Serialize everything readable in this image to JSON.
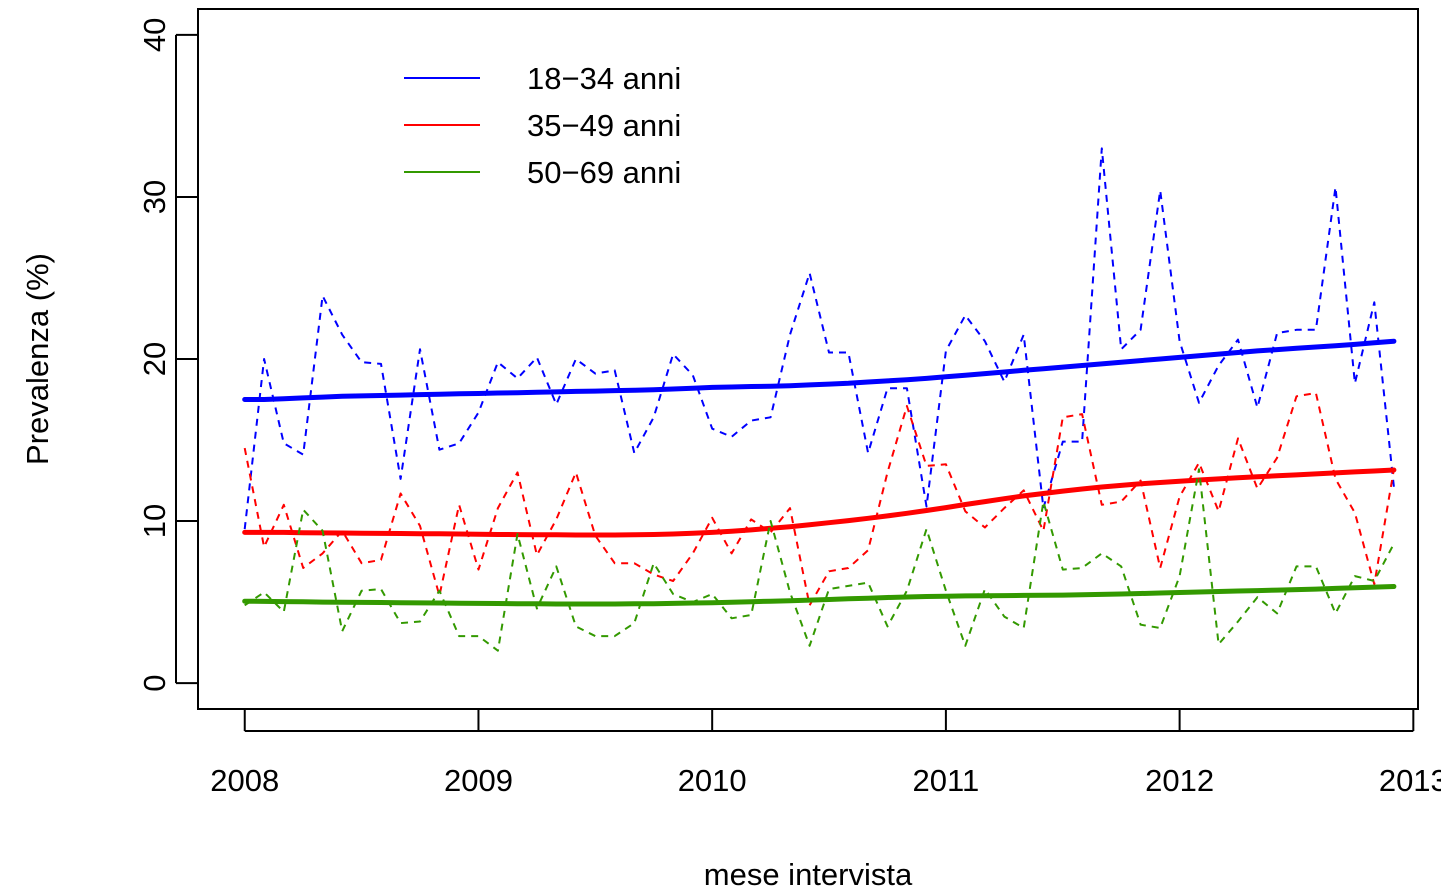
{
  "chart_data": {
    "type": "line",
    "title": "",
    "xlabel": "mese intervista",
    "ylabel": "Prevalenza (%)",
    "xlim": [
      2007.8,
      2013.02
    ],
    "ylim": [
      -1.6,
      41.6
    ],
    "x_ticks": [
      2008,
      2009,
      2010,
      2011,
      2012,
      2013
    ],
    "y_ticks": [
      0,
      10,
      20,
      30,
      40
    ],
    "grid": false,
    "legend_position": "top-left",
    "x": [
      2008.0,
      2008.083,
      2008.167,
      2008.25,
      2008.333,
      2008.417,
      2008.5,
      2008.583,
      2008.667,
      2008.75,
      2008.833,
      2008.917,
      2009.0,
      2009.083,
      2009.167,
      2009.25,
      2009.333,
      2009.417,
      2009.5,
      2009.583,
      2009.667,
      2009.75,
      2009.833,
      2009.917,
      2010.0,
      2010.083,
      2010.167,
      2010.25,
      2010.333,
      2010.417,
      2010.5,
      2010.583,
      2010.667,
      2010.75,
      2010.833,
      2010.917,
      2011.0,
      2011.083,
      2011.167,
      2011.25,
      2011.333,
      2011.417,
      2011.5,
      2011.583,
      2011.667,
      2011.75,
      2011.833,
      2011.917,
      2012.0,
      2012.083,
      2012.167,
      2012.25,
      2012.333,
      2012.417,
      2012.5,
      2012.583,
      2012.667,
      2012.75,
      2012.833,
      2012.917
    ],
    "series": [
      {
        "name": "18−34 anni",
        "color": "#0000ff",
        "monthly": [
          9.5,
          20.0,
          14.8,
          14.1,
          23.9,
          21.5,
          19.8,
          19.7,
          12.6,
          20.6,
          14.4,
          14.8,
          16.7,
          19.8,
          18.8,
          20.1,
          17.2,
          20.0,
          19.1,
          19.3,
          14.2,
          16.4,
          20.3,
          19.0,
          15.7,
          15.2,
          16.2,
          16.4,
          21.5,
          25.3,
          20.4,
          20.4,
          14.2,
          18.2,
          18.2,
          10.9,
          20.5,
          22.7,
          21.1,
          18.6,
          21.5,
          10.8,
          14.9,
          14.9,
          33.0,
          20.6,
          21.8,
          30.4,
          21.1,
          17.3,
          19.6,
          21.2,
          17.0,
          21.6,
          21.8,
          21.8,
          30.6,
          18.5,
          23.5,
          12.1
        ],
        "trend": [
          17.5,
          17.5,
          17.55,
          17.6,
          17.65,
          17.7,
          17.72,
          17.75,
          17.77,
          17.8,
          17.82,
          17.85,
          17.87,
          17.9,
          17.92,
          17.95,
          17.97,
          18.0,
          18.02,
          18.05,
          18.07,
          18.1,
          18.15,
          18.2,
          18.25,
          18.27,
          18.3,
          18.32,
          18.35,
          18.4,
          18.45,
          18.5,
          18.58,
          18.65,
          18.72,
          18.8,
          18.9,
          19.0,
          19.1,
          19.2,
          19.3,
          19.4,
          19.5,
          19.6,
          19.7,
          19.8,
          19.9,
          20.0,
          20.1,
          20.2,
          20.3,
          20.4,
          20.5,
          20.58,
          20.66,
          20.74,
          20.82,
          20.9,
          21.0,
          21.1
        ]
      },
      {
        "name": "35−49 anni",
        "color": "#ff0000",
        "monthly": [
          14.5,
          8.4,
          11.0,
          7.1,
          8.0,
          9.4,
          7.4,
          7.6,
          11.7,
          9.7,
          5.4,
          11.0,
          7.0,
          10.8,
          13.0,
          7.9,
          10.1,
          13.0,
          9.1,
          7.4,
          7.4,
          6.7,
          6.3,
          8.0,
          10.2,
          8.0,
          10.1,
          9.3,
          10.8,
          4.8,
          6.9,
          7.1,
          8.2,
          13.0,
          17.1,
          13.4,
          13.5,
          10.6,
          9.6,
          10.8,
          11.9,
          9.4,
          16.4,
          16.6,
          11.0,
          11.2,
          12.5,
          7.1,
          11.5,
          13.6,
          10.6,
          15.1,
          12.0,
          13.9,
          17.7,
          17.9,
          12.6,
          10.5,
          6.1,
          13.2
        ],
        "trend": [
          9.3,
          9.3,
          9.3,
          9.28,
          9.27,
          9.26,
          9.25,
          9.24,
          9.23,
          9.22,
          9.21,
          9.2,
          9.18,
          9.17,
          9.16,
          9.15,
          9.15,
          9.14,
          9.14,
          9.14,
          9.15,
          9.17,
          9.2,
          9.25,
          9.3,
          9.37,
          9.45,
          9.55,
          9.65,
          9.77,
          9.9,
          10.03,
          10.17,
          10.32,
          10.48,
          10.65,
          10.83,
          11.02,
          11.2,
          11.38,
          11.55,
          11.7,
          11.85,
          11.98,
          12.1,
          12.2,
          12.3,
          12.38,
          12.46,
          12.53,
          12.6,
          12.67,
          12.73,
          12.79,
          12.85,
          12.91,
          12.97,
          13.03,
          13.09,
          13.15
        ]
      },
      {
        "name": "50−69 anni",
        "color": "#339900",
        "monthly": [
          4.8,
          5.6,
          4.4,
          10.7,
          9.4,
          3.2,
          5.7,
          5.8,
          3.7,
          3.8,
          5.7,
          2.9,
          2.9,
          2.0,
          9.2,
          4.6,
          7.2,
          3.5,
          2.9,
          2.9,
          3.7,
          7.4,
          5.5,
          5.0,
          5.5,
          4.0,
          4.2,
          10.0,
          5.6,
          2.3,
          5.8,
          6.0,
          6.2,
          3.5,
          5.7,
          9.5,
          5.7,
          2.3,
          5.8,
          4.1,
          3.4,
          11.2,
          7.0,
          7.1,
          8.0,
          7.2,
          3.6,
          3.4,
          6.6,
          13.2,
          2.4,
          3.8,
          5.3,
          4.3,
          7.2,
          7.2,
          4.3,
          6.6,
          6.3,
          8.6
        ],
        "trend": [
          5.05,
          5.04,
          5.03,
          5.02,
          5.0,
          4.99,
          4.98,
          4.97,
          4.96,
          4.95,
          4.94,
          4.93,
          4.92,
          4.91,
          4.9,
          4.89,
          4.88,
          4.88,
          4.88,
          4.88,
          4.89,
          4.9,
          4.92,
          4.94,
          4.96,
          4.99,
          5.02,
          5.05,
          5.08,
          5.12,
          5.16,
          5.2,
          5.24,
          5.28,
          5.31,
          5.34,
          5.36,
          5.38,
          5.39,
          5.4,
          5.41,
          5.42,
          5.43,
          5.45,
          5.47,
          5.5,
          5.53,
          5.56,
          5.59,
          5.62,
          5.65,
          5.68,
          5.71,
          5.74,
          5.77,
          5.8,
          5.84,
          5.88,
          5.92,
          5.96
        ]
      }
    ]
  }
}
